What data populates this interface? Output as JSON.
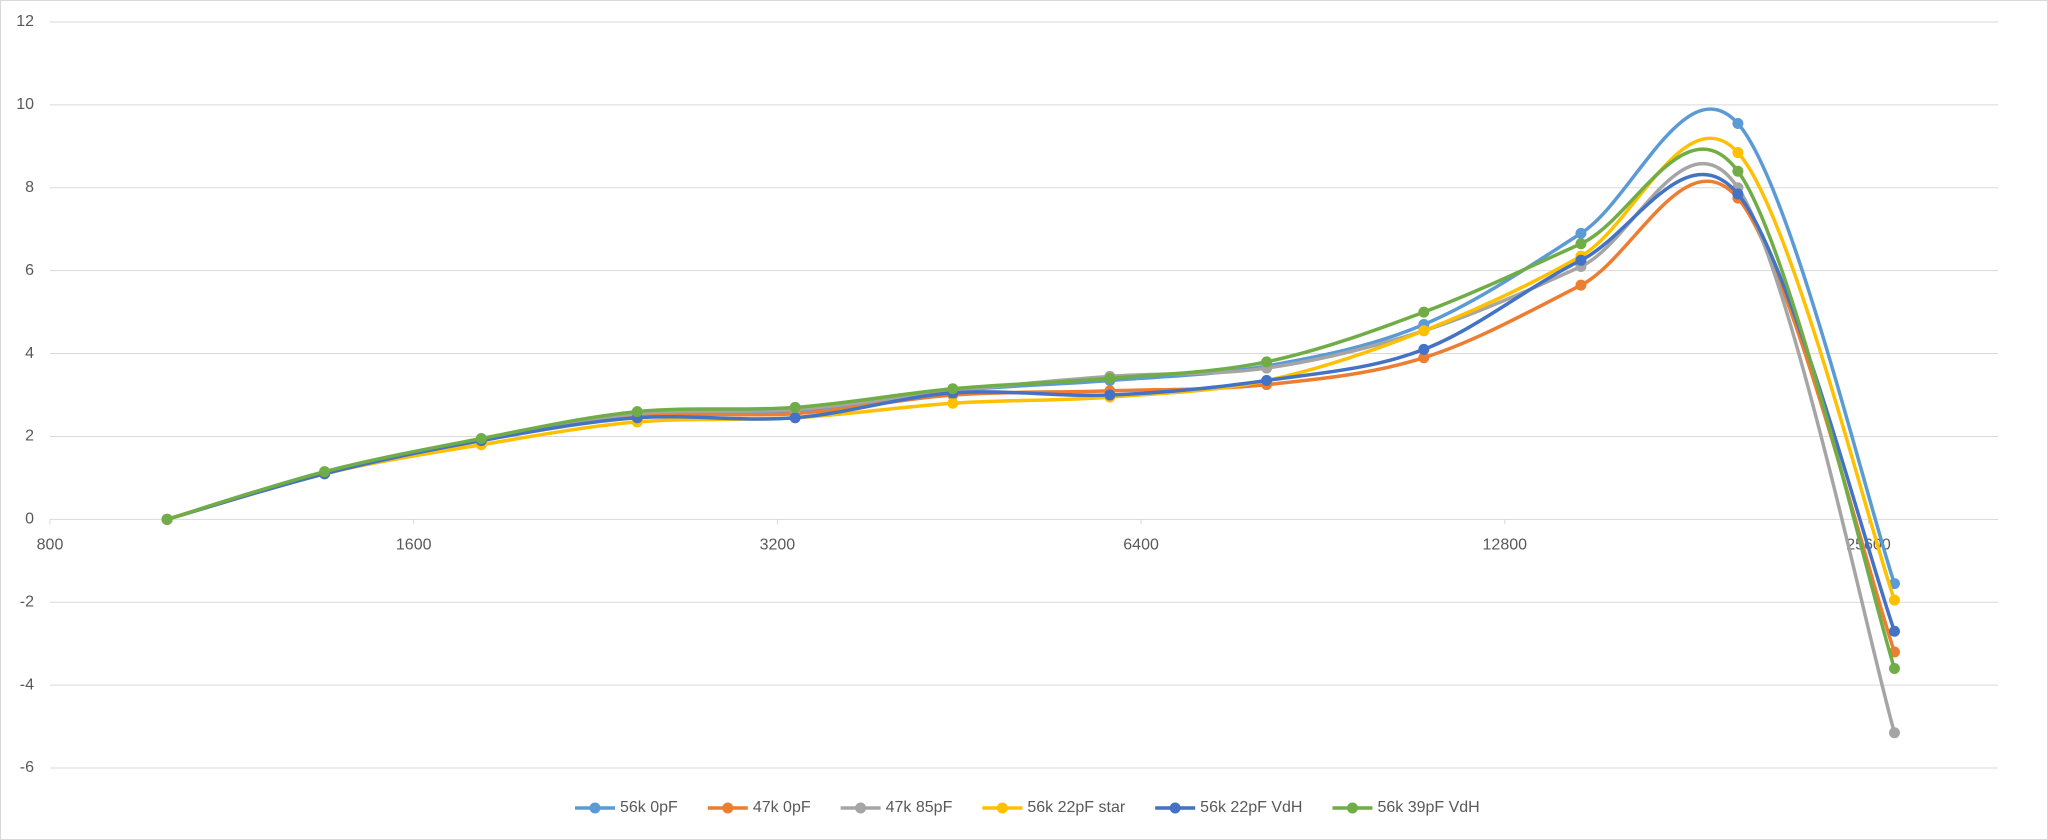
{
  "chart_data": {
    "type": "line",
    "x": [
      1000,
      1350,
      1820,
      2450,
      3310,
      4470,
      6030,
      8130,
      10970,
      14800,
      19960,
      26900
    ],
    "xlim": [
      800,
      32768
    ],
    "xticks": [
      800,
      1600,
      3200,
      6400,
      12800,
      25600
    ],
    "xlog": 2,
    "ylim": [
      -6,
      12
    ],
    "yticks": [
      -6,
      -4,
      -2,
      0,
      2,
      4,
      6,
      8,
      10,
      12
    ],
    "grid": true,
    "smooth": true,
    "legend": "bottom",
    "series": [
      {
        "name": "56k 0pF",
        "color": "#5b9bd5",
        "values": [
          0,
          1.1,
          1.9,
          2.5,
          2.6,
          3.1,
          3.35,
          3.7,
          4.7,
          6.9,
          9.55,
          -1.55
        ]
      },
      {
        "name": "47k 0pF",
        "color": "#ed7d31",
        "values": [
          0,
          1.1,
          1.9,
          2.5,
          2.55,
          3.0,
          3.1,
          3.25,
          3.9,
          5.65,
          7.75,
          -3.2
        ]
      },
      {
        "name": "47k 85pF",
        "color": "#a5a5a5",
        "values": [
          0,
          1.1,
          1.9,
          2.55,
          2.65,
          3.1,
          3.45,
          3.65,
          4.55,
          6.1,
          8.0,
          -5.15
        ]
      },
      {
        "name": "56k 22pF star",
        "color": "#ffc000",
        "values": [
          0,
          1.1,
          1.8,
          2.35,
          2.45,
          2.8,
          2.95,
          3.35,
          4.55,
          6.35,
          8.85,
          -1.95
        ]
      },
      {
        "name": "56k 22pF VdH",
        "color": "#4472c4",
        "values": [
          0,
          1.1,
          1.9,
          2.45,
          2.45,
          3.05,
          3.0,
          3.35,
          4.1,
          6.25,
          7.85,
          -2.7
        ]
      },
      {
        "name": "56k 39pF VdH",
        "color": "#70ad47",
        "values": [
          0,
          1.15,
          1.95,
          2.6,
          2.7,
          3.15,
          3.4,
          3.8,
          5.0,
          6.65,
          8.4,
          -3.6
        ]
      }
    ]
  }
}
